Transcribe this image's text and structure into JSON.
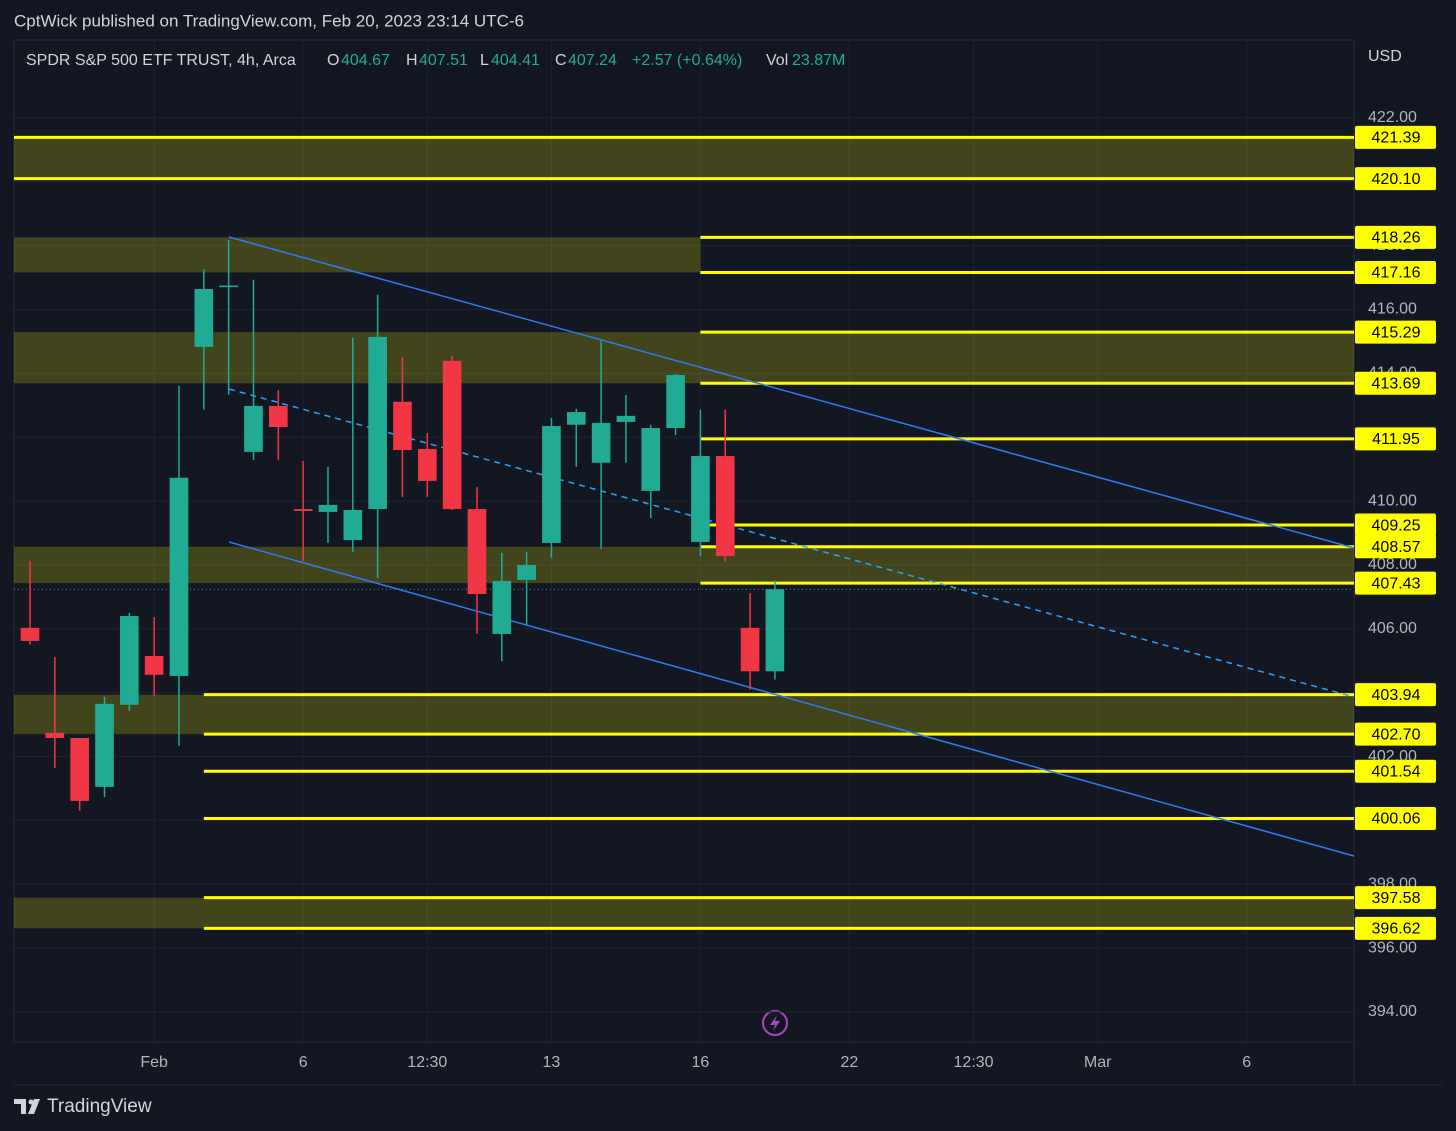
{
  "header": {
    "publisher": "CptWick published on TradingView.com, Feb 20, 2023 23:14 UTC-6"
  },
  "footer": {
    "brand": "TradingView"
  },
  "chart_data": {
    "type": "candlestick",
    "title": "SPDR S&P 500 ETF TRUST, 4h, Arca",
    "legend_labels": {
      "open": "O",
      "high": "H",
      "low": "L",
      "close": "C",
      "volume": "Vol"
    },
    "change": "+2.57 (+0.64%)",
    "volume": "23.87M",
    "currency": "USD",
    "categories": [
      null,
      null,
      null,
      null,
      null,
      "Feb",
      null,
      null,
      null,
      null,
      null,
      "6",
      null,
      null,
      null,
      null,
      "12:30",
      null,
      null,
      null,
      null,
      "13",
      null,
      null,
      null,
      null,
      null,
      "16",
      null,
      null,
      null,
      null,
      null,
      "22",
      null,
      null,
      null,
      null,
      "12:30",
      null,
      null,
      null,
      null,
      "Mar",
      null,
      null,
      null,
      null,
      null,
      "6",
      null,
      null,
      null,
      null
    ],
    "open": [
      406.03,
      402.74,
      402.58,
      401.05,
      403.62,
      405.15,
      404.52,
      414.83,
      416.7,
      411.54,
      412.98,
      409.75,
      409.66,
      408.78,
      409.75,
      413.11,
      411.63,
      414.39,
      409.75,
      405.84,
      407.53,
      408.69,
      412.39,
      411.2,
      412.48,
      410.32,
      412.29,
      408.72,
      411.41,
      406.03,
      404.67,
      null,
      null,
      null,
      null,
      null,
      null,
      null,
      null,
      null,
      null,
      null,
      null,
      null,
      null,
      null,
      null,
      null,
      null,
      null,
      null,
      null,
      null,
      null
    ],
    "high": [
      408.13,
      405.12,
      402.58,
      403.87,
      406.5,
      406.37,
      413.61,
      417.27,
      418.18,
      416.93,
      413.48,
      411.26,
      411.07,
      415.11,
      416.46,
      414.51,
      412.13,
      414.55,
      410.44,
      408.38,
      408.41,
      412.6,
      412.89,
      415.02,
      413.32,
      412.39,
      413.98,
      412.86,
      412.86,
      407.12,
      407.51,
      null,
      null,
      null,
      null,
      null,
      null,
      null,
      null,
      null,
      null,
      null,
      null,
      null,
      null,
      null,
      null,
      null,
      null,
      null,
      null,
      null,
      null,
      null
    ],
    "low": [
      405.5,
      401.64,
      400.3,
      400.73,
      403.43,
      403.9,
      402.33,
      412.86,
      413.33,
      411.29,
      411.29,
      408.13,
      408.69,
      408.41,
      407.59,
      410.13,
      410.13,
      409.72,
      405.84,
      404.99,
      406.12,
      408.22,
      411.07,
      408.5,
      411.2,
      409.47,
      412.07,
      408.28,
      408.09,
      404.09,
      404.41,
      null,
      null,
      null,
      null,
      null,
      null,
      null,
      null,
      null,
      null,
      null,
      null,
      null,
      null,
      null,
      null,
      null,
      null,
      null,
      null,
      null,
      null,
      null
    ],
    "close": [
      405.62,
      402.58,
      400.61,
      403.65,
      406.4,
      404.56,
      410.73,
      416.64,
      416.75,
      412.98,
      412.32,
      409.69,
      409.88,
      409.72,
      415.14,
      411.6,
      410.63,
      409.75,
      407.09,
      407.5,
      408.0,
      412.35,
      412.79,
      412.45,
      412.67,
      412.29,
      413.95,
      411.41,
      408.28,
      404.67,
      407.24,
      null,
      null,
      null,
      null,
      null,
      null,
      null,
      null,
      null,
      null,
      null,
      null,
      null,
      null,
      null,
      null,
      null,
      null,
      null,
      null,
      null,
      null,
      null
    ],
    "up_color": "#22ab94",
    "down_color": "#f23645",
    "ylim": [
      393.06,
      424.44
    ],
    "yticks": [
      {
        "value": 422,
        "label": "422.00"
      },
      {
        "value": 420,
        "label": "420.00"
      },
      {
        "value": 418,
        "label": "418.00"
      },
      {
        "value": 416,
        "label": "416.00"
      },
      {
        "value": 414,
        "label": "414.00"
      },
      {
        "value": 412,
        "label": "412.00"
      },
      {
        "value": 410,
        "label": "410.00"
      },
      {
        "value": 408,
        "label": "408.00"
      },
      {
        "value": 406,
        "label": "406.00"
      },
      {
        "value": 404,
        "label": "404.00"
      },
      {
        "value": 402,
        "label": "402.00"
      },
      {
        "value": 400,
        "label": "400.00"
      },
      {
        "value": 398,
        "label": "398.00"
      },
      {
        "value": 396,
        "label": "396.00"
      },
      {
        "value": 394,
        "label": "394.00"
      }
    ],
    "grid": true,
    "levels": {
      "values": [
        421.39,
        420.1,
        418.26,
        417.16,
        415.29,
        413.69,
        411.95,
        409.25,
        408.57,
        407.43,
        403.94,
        402.7,
        401.54,
        400.06,
        397.58,
        396.62
      ],
      "value_labels": [
        "421.39",
        "420.10",
        "418.26",
        "417.16",
        "415.29",
        "413.69",
        "411.95",
        "409.25",
        "408.57",
        "407.43",
        "403.94",
        "402.70",
        "401.54",
        "400.06",
        "397.58",
        "396.62"
      ],
      "color": "#ffff00"
    }
  }
}
